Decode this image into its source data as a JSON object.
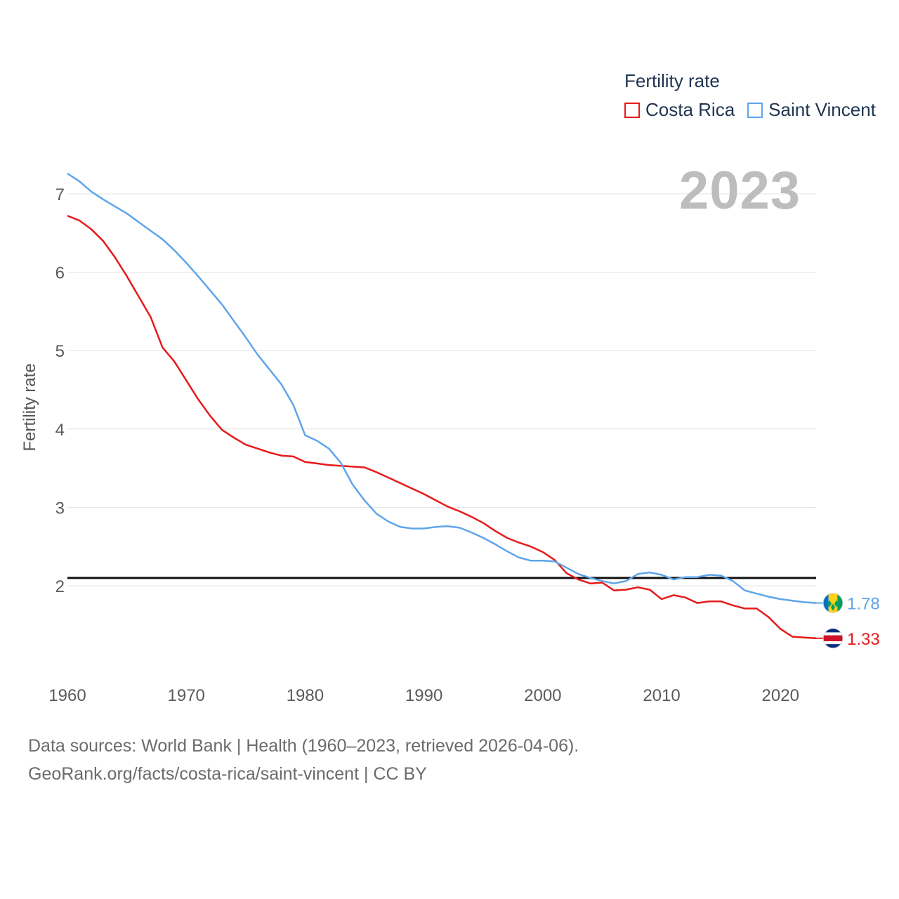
{
  "chart_data": {
    "type": "line",
    "year_label": "2023",
    "legend_title": "Fertility rate",
    "ylabel": "Fertility rate",
    "xlabel": "",
    "xlim": [
      1960,
      2023
    ],
    "ylim": [
      1.0,
      7.3
    ],
    "x_ticks": [
      1960,
      1970,
      1980,
      1990,
      2000,
      2010,
      2020
    ],
    "y_ticks": [
      2,
      3,
      4,
      5,
      6,
      7
    ],
    "reference_line": 2.1,
    "x": [
      1960,
      1961,
      1962,
      1963,
      1964,
      1965,
      1966,
      1967,
      1968,
      1969,
      1970,
      1971,
      1972,
      1973,
      1974,
      1975,
      1976,
      1977,
      1978,
      1979,
      1980,
      1981,
      1982,
      1983,
      1984,
      1985,
      1986,
      1987,
      1988,
      1989,
      1990,
      1991,
      1992,
      1993,
      1994,
      1995,
      1996,
      1997,
      1998,
      1999,
      2000,
      2001,
      2002,
      2003,
      2004,
      2005,
      2006,
      2007,
      2008,
      2009,
      2010,
      2011,
      2012,
      2013,
      2014,
      2015,
      2016,
      2017,
      2018,
      2019,
      2020,
      2021,
      2022,
      2023
    ],
    "series": [
      {
        "name": "Costa Rica",
        "color": "#e8191b",
        "end_label": "1.33",
        "flag": "costa-rica-flag",
        "values": [
          6.72,
          6.66,
          6.55,
          6.4,
          6.19,
          5.95,
          5.69,
          5.43,
          5.04,
          4.86,
          4.62,
          4.38,
          4.17,
          3.99,
          3.89,
          3.8,
          3.75,
          3.7,
          3.66,
          3.65,
          3.58,
          3.56,
          3.54,
          3.53,
          3.52,
          3.51,
          3.45,
          3.38,
          3.31,
          3.24,
          3.17,
          3.09,
          3.01,
          2.95,
          2.88,
          2.8,
          2.7,
          2.61,
          2.55,
          2.5,
          2.43,
          2.33,
          2.16,
          2.08,
          2.03,
          2.04,
          1.94,
          1.95,
          1.98,
          1.95,
          1.83,
          1.88,
          1.85,
          1.78,
          1.8,
          1.8,
          1.75,
          1.71,
          1.71,
          1.6,
          1.45,
          1.35,
          1.34,
          1.33
        ]
      },
      {
        "name": "Saint Vincent",
        "color": "#5ea5ea",
        "end_label": "1.78",
        "flag": "saint-vincent-flag",
        "values": [
          7.26,
          7.16,
          7.03,
          6.93,
          6.84,
          6.75,
          6.64,
          6.53,
          6.42,
          6.28,
          6.12,
          5.95,
          5.77,
          5.59,
          5.38,
          5.17,
          4.95,
          4.76,
          4.57,
          4.31,
          3.92,
          3.85,
          3.75,
          3.57,
          3.29,
          3.09,
          2.92,
          2.82,
          2.75,
          2.73,
          2.73,
          2.75,
          2.76,
          2.74,
          2.68,
          2.61,
          2.53,
          2.44,
          2.36,
          2.32,
          2.32,
          2.31,
          2.23,
          2.15,
          2.1,
          2.06,
          2.03,
          2.06,
          2.15,
          2.17,
          2.14,
          2.08,
          2.11,
          2.11,
          2.14,
          2.13,
          2.06,
          1.94,
          1.9,
          1.86,
          1.83,
          1.81,
          1.79,
          1.78
        ]
      }
    ]
  },
  "source": {
    "line1": "Data sources: World Bank | Health (1960–2023, retrieved 2026-04-06).",
    "line2": "GeoRank.org/facts/costa-rica/saint-vincent | CC BY"
  }
}
